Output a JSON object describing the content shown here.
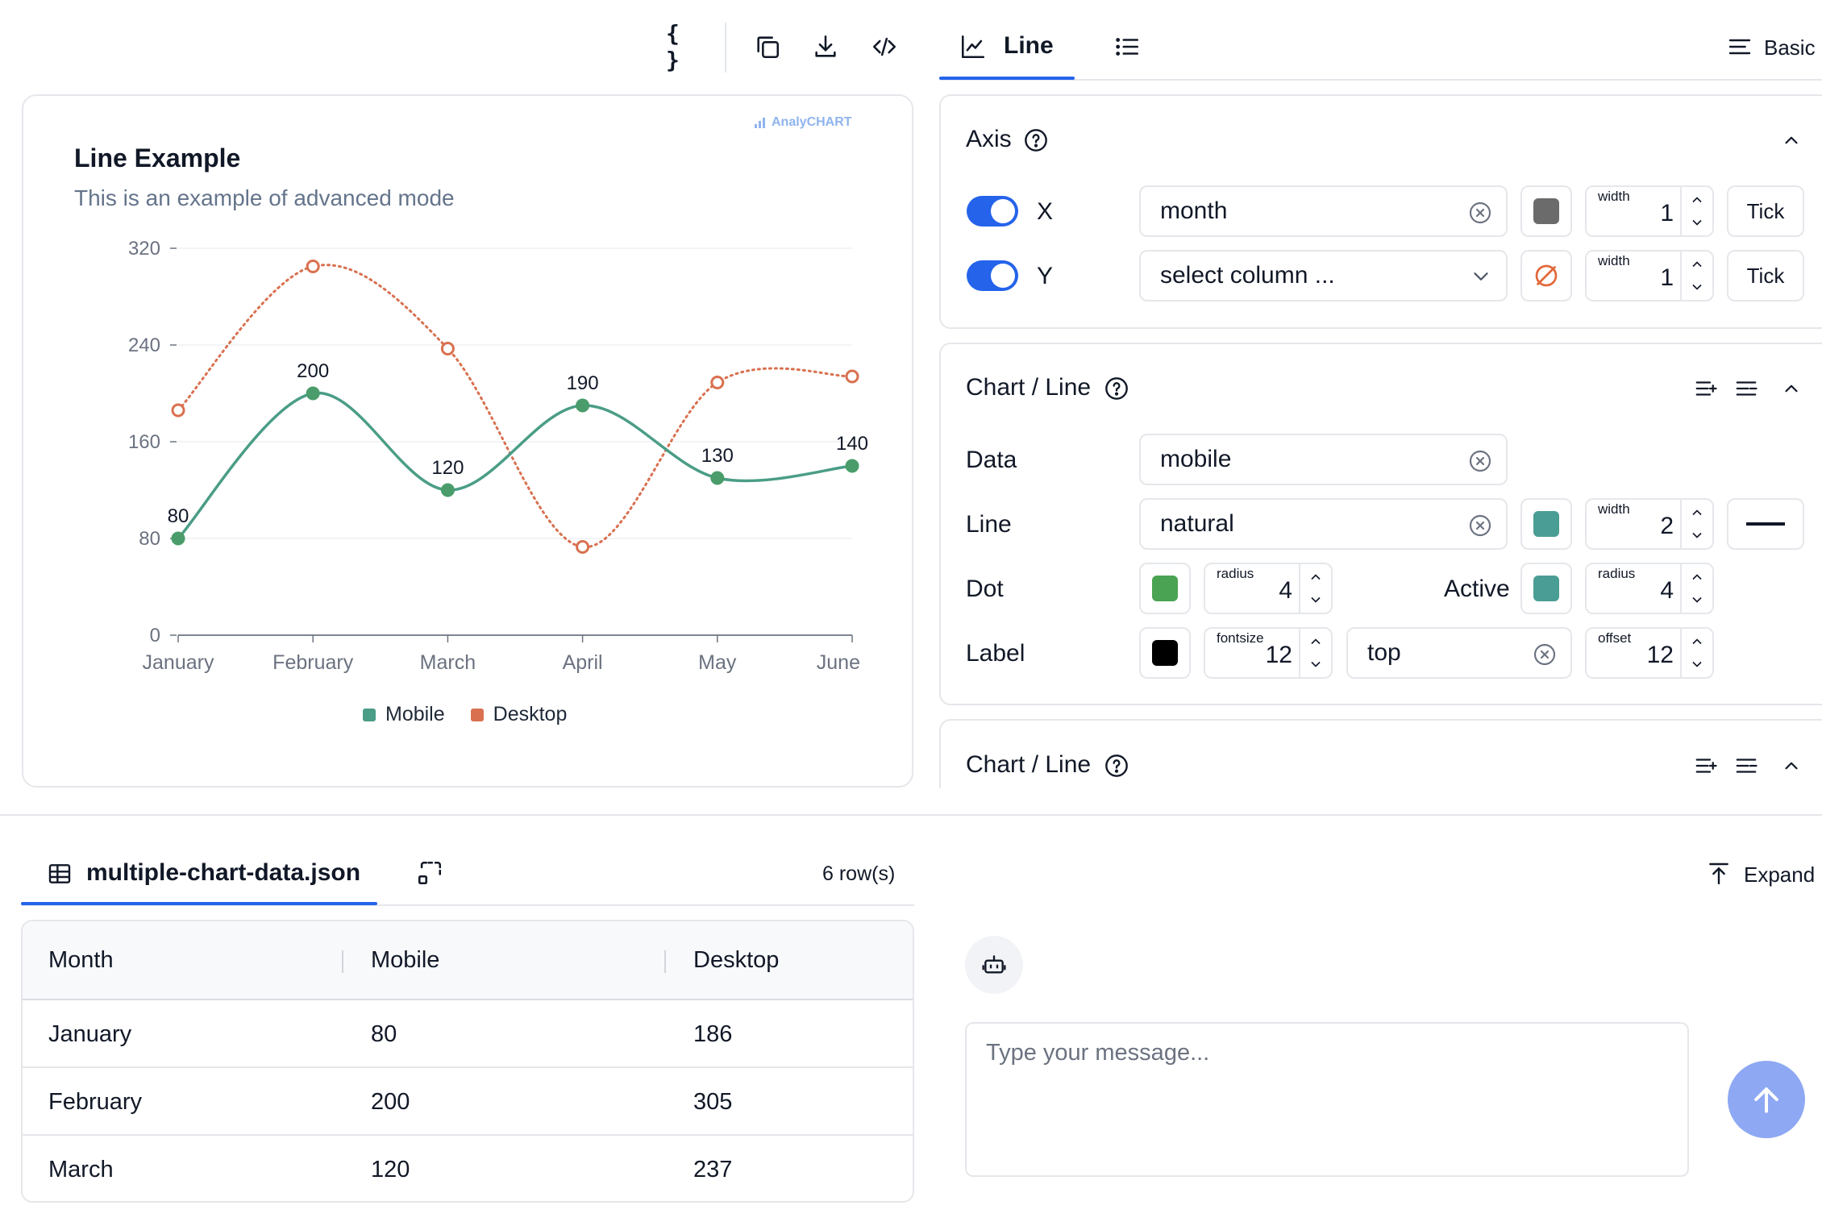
{
  "toolbar": {
    "icons": [
      "json-braces-icon",
      "copy-icon",
      "download-icon",
      "code-icon"
    ]
  },
  "right_tabs": {
    "line_label": "Line",
    "basic_label": "Basic"
  },
  "chart_card": {
    "brand": "AnalyCHART",
    "title": "Line Example",
    "subtitle": "This is an example of advanced mode"
  },
  "chart_data": {
    "type": "line",
    "categories": [
      "January",
      "February",
      "March",
      "April",
      "May",
      "June"
    ],
    "series": [
      {
        "name": "Mobile",
        "values": [
          80,
          200,
          120,
          190,
          130,
          140
        ],
        "color": "#4a9d86",
        "dot_color": "#4a9d6a",
        "style": "solid",
        "labels": [
          "80",
          "200",
          "120",
          "190",
          "130",
          "140"
        ]
      },
      {
        "name": "Desktop",
        "values": [
          186,
          305,
          237,
          73,
          209,
          214
        ],
        "color": "#d9704f",
        "style": "dotted"
      }
    ],
    "yticks": [
      "0",
      "80",
      "160",
      "240",
      "320"
    ],
    "ylim": [
      0,
      320
    ],
    "grid": true,
    "legend": "bottom",
    "xlabel": "",
    "ylabel": ""
  },
  "axis_panel": {
    "title": "Axis",
    "x": {
      "label": "X",
      "column": "month",
      "color": "#6b6b6b",
      "width_label": "width",
      "width": "1",
      "tick_label": "Tick"
    },
    "y": {
      "label": "Y",
      "placeholder": "select column ...",
      "width_label": "width",
      "width": "1",
      "tick_label": "Tick"
    }
  },
  "line_panel": {
    "title": "Chart / Line",
    "data_label": "Data",
    "data_value": "mobile",
    "line_label": "Line",
    "line_value": "natural",
    "line_color": "#4a9d94",
    "line_width_label": "width",
    "line_width": "2",
    "dot_label": "Dot",
    "dot_color": "#4aa352",
    "dot_radius_label": "radius",
    "dot_radius": "4",
    "active_label": "Active",
    "active_color": "#4a9d94",
    "active_radius_label": "radius",
    "active_radius": "4",
    "label_label": "Label",
    "label_color": "#000000",
    "fontsize_label": "fontsize",
    "fontsize": "12",
    "position": "top",
    "offset_label": "offset",
    "offset": "12"
  },
  "line_panel2": {
    "title": "Chart / Line"
  },
  "data_view": {
    "file_name": "multiple-chart-data.json",
    "rows_count": "6 row(s)",
    "expand_label": "Expand",
    "columns": [
      "Month",
      "Mobile",
      "Desktop"
    ],
    "rows": [
      [
        "January",
        "80",
        "186"
      ],
      [
        "February",
        "200",
        "305"
      ],
      [
        "March",
        "120",
        "237"
      ]
    ]
  },
  "chat": {
    "placeholder": "Type your message..."
  }
}
